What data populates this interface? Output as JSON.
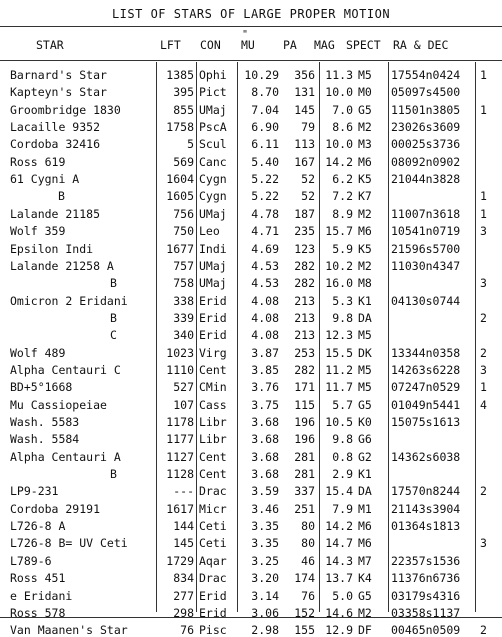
{
  "title": "LIST OF STARS OF LARGE PROPER MOTION",
  "headers": {
    "star": "STAR",
    "lft": "LFT",
    "con": "CON",
    "mu": "MU",
    "pa": "PA",
    "mag": "MAG",
    "spect": "SPECT",
    "radec": "RA & DEC",
    "mu_mark": "\""
  },
  "rows": [
    {
      "star": "Barnard's Star",
      "lft": "1385",
      "con": "Ophi",
      "mu": "10.29",
      "pa": "356",
      "mag": "11.3",
      "spect": "M5",
      "radec": "17554n0424",
      "note": "1"
    },
    {
      "star": "Kapteyn's Star",
      "lft": "395",
      "con": "Pict",
      "mu": "8.70",
      "pa": "131",
      "mag": "10.0",
      "spect": "M0",
      "radec": "05097s4500",
      "note": ""
    },
    {
      "star": "Groombridge 1830",
      "lft": "855",
      "con": "UMaj",
      "mu": "7.04",
      "pa": "145",
      "mag": "7.0",
      "spect": "G5",
      "radec": "11501n3805",
      "note": "1"
    },
    {
      "star": "Lacaille 9352",
      "lft": "1758",
      "con": "PscA",
      "mu": "6.90",
      "pa": "79",
      "mag": "8.6",
      "spect": "M2",
      "radec": "23026s3609",
      "note": ""
    },
    {
      "star": "Cordoba 32416",
      "lft": "5",
      "con": "Scul",
      "mu": "6.11",
      "pa": "113",
      "mag": "10.0",
      "spect": "M3",
      "radec": "00025s3736",
      "note": ""
    },
    {
      "star": "Ross 619",
      "lft": "569",
      "con": "Canc",
      "mu": "5.40",
      "pa": "167",
      "mag": "14.2",
      "spect": "M6",
      "radec": "08092n0902",
      "note": ""
    },
    {
      "star": "61 Cygni A",
      "lft": "1604",
      "con": "Cygn",
      "mu": "5.22",
      "pa": "52",
      "mag": "6.2",
      "spect": "K5",
      "radec": "21044n3828",
      "note": ""
    },
    {
      "star": "B",
      "lft": "1605",
      "con": "Cygn",
      "mu": "5.22",
      "pa": "52",
      "mag": "7.2",
      "spect": "K7",
      "radec": "",
      "note": "1",
      "indent": 1
    },
    {
      "star": "Lalande 21185",
      "lft": "756",
      "con": "UMaj",
      "mu": "4.78",
      "pa": "187",
      "mag": "8.9",
      "spect": "M2",
      "radec": "11007n3618",
      "note": "1"
    },
    {
      "star": "Wolf 359",
      "lft": "750",
      "con": "Leo",
      "mu": "4.71",
      "pa": "235",
      "mag": "15.7",
      "spect": "M6",
      "radec": "10541n0719",
      "note": "3"
    },
    {
      "star": "Epsilon Indi",
      "lft": "1677",
      "con": "Indi",
      "mu": "4.69",
      "pa": "123",
      "mag": "5.9",
      "spect": "K5",
      "radec": "21596s5700",
      "note": ""
    },
    {
      "star": "Lalande 21258 A",
      "lft": "757",
      "con": "UMaj",
      "mu": "4.53",
      "pa": "282",
      "mag": "10.2",
      "spect": "M2",
      "radec": "11030n4347",
      "note": ""
    },
    {
      "star": "B",
      "lft": "758",
      "con": "UMaj",
      "mu": "4.53",
      "pa": "282",
      "mag": "16.0",
      "spect": "M8",
      "radec": "",
      "note": "3",
      "indent": 2
    },
    {
      "star": "Omicron 2 Eridani",
      "lft": "338",
      "con": "Erid",
      "mu": "4.08",
      "pa": "213",
      "mag": "5.3",
      "spect": "K1",
      "radec": "04130s0744",
      "note": ""
    },
    {
      "star": "B",
      "lft": "339",
      "con": "Erid",
      "mu": "4.08",
      "pa": "213",
      "mag": "9.8",
      "spect": "DA",
      "radec": "",
      "note": "2",
      "indent": 2
    },
    {
      "star": "C",
      "lft": "340",
      "con": "Erid",
      "mu": "4.08",
      "pa": "213",
      "mag": "12.3",
      "spect": "M5",
      "radec": "",
      "note": "",
      "indent": 2
    },
    {
      "star": "Wolf 489",
      "lft": "1023",
      "con": "Virg",
      "mu": "3.87",
      "pa": "253",
      "mag": "15.5",
      "spect": "DK",
      "radec": "13344n0358",
      "note": "2"
    },
    {
      "star": "Alpha Centauri C",
      "lft": "1110",
      "con": "Cent",
      "mu": "3.85",
      "pa": "282",
      "mag": "11.2",
      "spect": "M5",
      "radec": "14263s6228",
      "note": "3"
    },
    {
      "star": "BD+5°1668",
      "lft": "527",
      "con": "CMin",
      "mu": "3.76",
      "pa": "171",
      "mag": "11.7",
      "spect": "M5",
      "radec": "07247n0529",
      "note": "1"
    },
    {
      "star": "Mu Cassiopeiae",
      "lft": "107",
      "con": "Cass",
      "mu": "3.75",
      "pa": "115",
      "mag": "5.7",
      "spect": "G5",
      "radec": "01049n5441",
      "note": "4"
    },
    {
      "star": "Wash. 5583",
      "lft": "1178",
      "con": "Libr",
      "mu": "3.68",
      "pa": "196",
      "mag": "10.5",
      "spect": "K0",
      "radec": "15075s1613",
      "note": ""
    },
    {
      "star": "Wash. 5584",
      "lft": "1177",
      "con": "Libr",
      "mu": "3.68",
      "pa": "196",
      "mag": "9.8",
      "spect": "G6",
      "radec": "",
      "note": ""
    },
    {
      "star": "Alpha Centauri A",
      "lft": "1127",
      "con": "Cent",
      "mu": "3.68",
      "pa": "281",
      "mag": "0.8",
      "spect": "G2",
      "radec": "14362s6038",
      "note": ""
    },
    {
      "star": "B",
      "lft": "1128",
      "con": "Cent",
      "mu": "3.68",
      "pa": "281",
      "mag": "2.9",
      "spect": "K1",
      "radec": "",
      "note": "",
      "indent": 2
    },
    {
      "star": "LP9-231",
      "lft": "---",
      "con": "Drac",
      "mu": "3.59",
      "pa": "337",
      "mag": "15.4",
      "spect": "DA",
      "radec": "17570n8244",
      "note": "2"
    },
    {
      "star": "Cordoba 29191",
      "lft": "1617",
      "con": "Micr",
      "mu": "3.46",
      "pa": "251",
      "mag": "7.9",
      "spect": "M1",
      "radec": "21143s3904",
      "note": ""
    },
    {
      "star": "L726-8 A",
      "lft": "144",
      "con": "Ceti",
      "mu": "3.35",
      "pa": "80",
      "mag": "14.2",
      "spect": "M6",
      "radec": "01364s1813",
      "note": ""
    },
    {
      "star": "L726-8 B= UV Ceti",
      "lft": "145",
      "con": "Ceti",
      "mu": "3.35",
      "pa": "80",
      "mag": "14.7",
      "spect": "M6",
      "radec": "",
      "note": "3"
    },
    {
      "star": "L789-6",
      "lft": "1729",
      "con": "Aqar",
      "mu": "3.25",
      "pa": "46",
      "mag": "14.3",
      "spect": "M7",
      "radec": "22357s1536",
      "note": ""
    },
    {
      "star": "Ross 451",
      "lft": "834",
      "con": "Drac",
      "mu": "3.20",
      "pa": "174",
      "mag": "13.7",
      "spect": "K4",
      "radec": "11376n6736",
      "note": ""
    },
    {
      "star": "e Eridani",
      "lft": "277",
      "con": "Erid",
      "mu": "3.14",
      "pa": "76",
      "mag": "5.0",
      "spect": "G5",
      "radec": "03179s4316",
      "note": ""
    },
    {
      "star": "Ross 578",
      "lft": "298",
      "con": "Erid",
      "mu": "3.06",
      "pa": "152",
      "mag": "14.6",
      "spect": "M2",
      "radec": "03358s1137",
      "note": ""
    },
    {
      "star": "Van Maanen's Star",
      "lft": "76",
      "con": "Pisc",
      "mu": "2.98",
      "pa": "155",
      "mag": "12.9",
      "spect": "DF",
      "radec": "00465n0509",
      "note": "2"
    }
  ]
}
